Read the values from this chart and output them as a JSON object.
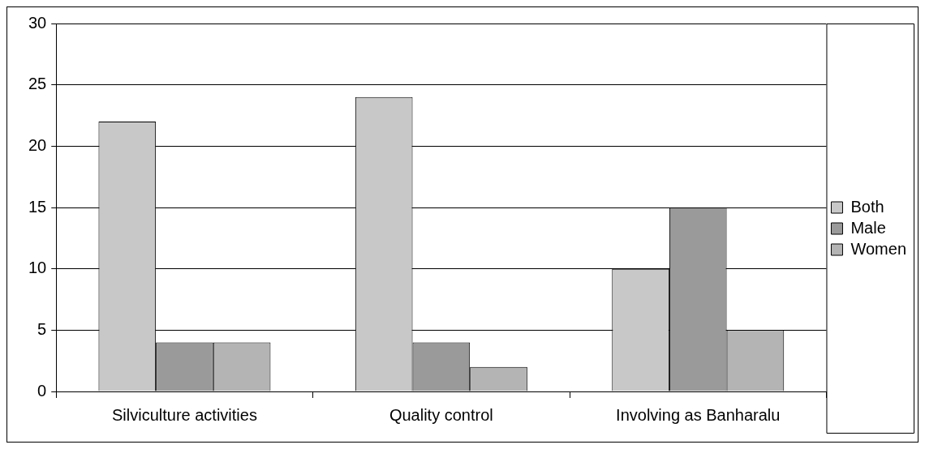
{
  "chart_data": {
    "type": "bar",
    "categories": [
      "Silviculture activities",
      "Quality control",
      "Involving as Banharalu"
    ],
    "series": [
      {
        "name": "Both",
        "color": "#c8c8c8",
        "values": [
          22,
          24,
          10
        ]
      },
      {
        "name": "Male",
        "color": "#9a9a9a",
        "values": [
          4,
          4,
          15
        ]
      },
      {
        "name": "Women",
        "color": "#b4b4b4",
        "values": [
          4,
          2,
          5
        ]
      }
    ],
    "ylim": [
      0,
      30
    ],
    "yticks": [
      0,
      5,
      10,
      15,
      20,
      25,
      30
    ],
    "grid": "y",
    "legend": "right"
  }
}
